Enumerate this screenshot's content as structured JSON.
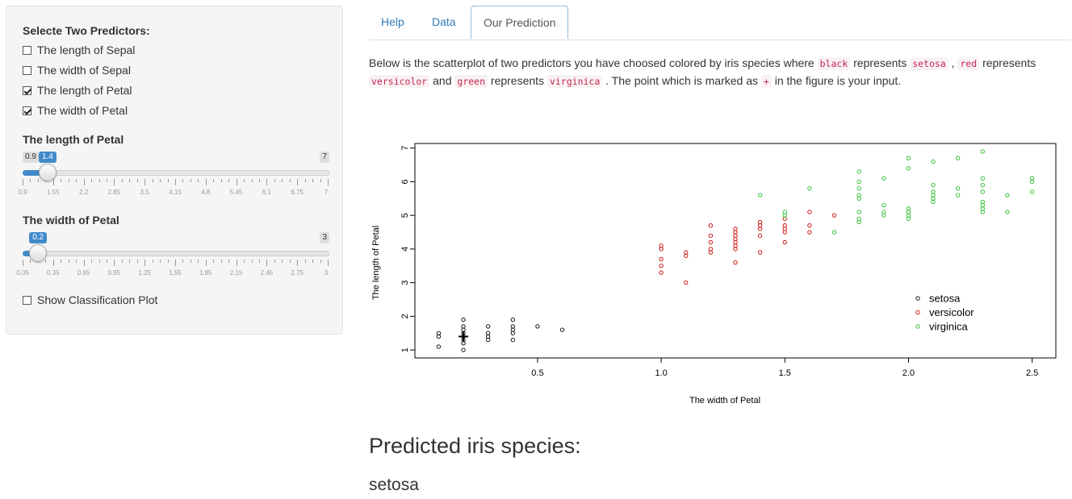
{
  "sidebar": {
    "predictors_label": "Selecte Two Predictors:",
    "predictors": [
      {
        "label": "The length of Sepal",
        "checked": false
      },
      {
        "label": "The width of Sepal",
        "checked": false
      },
      {
        "label": "The length of Petal",
        "checked": true
      },
      {
        "label": "The width of Petal",
        "checked": true
      }
    ],
    "slider1": {
      "label": "The length of Petal",
      "min": 0.9,
      "max": 7,
      "value": 1.4,
      "min_label": "0.9",
      "max_label": "7",
      "value_label": "1.4",
      "tick_labels": [
        "0.9",
        "1.55",
        "2.2",
        "2.85",
        "3.5",
        "4.15",
        "4.8",
        "5.45",
        "6.1",
        "6.75",
        "7"
      ]
    },
    "slider2": {
      "label": "The width of Petal",
      "min": 0.05,
      "max": 3,
      "value": 0.2,
      "min_label": "0.05",
      "max_label": "3",
      "value_label": "0.2",
      "tick_labels": [
        "0.05",
        "0.35",
        "0.65",
        "0.95",
        "1.25",
        "1.55",
        "1.85",
        "2.15",
        "2.45",
        "2.75",
        "3"
      ]
    },
    "classification_plot": {
      "label": "Show Classification Plot",
      "checked": false
    }
  },
  "tabs": [
    {
      "label": "Help",
      "active": false
    },
    {
      "label": "Data",
      "active": false
    },
    {
      "label": "Our Prediction",
      "active": true
    }
  ],
  "description": {
    "t1": "Below is the scatterplot of two predictors you have choosed colored by iris species where ",
    "c1": "black",
    "t2": " represents ",
    "c2": "setosa",
    "t3": " , ",
    "c3": "red",
    "t4": " represents ",
    "c4": "versicolor",
    "t5": " and ",
    "c5": "green",
    "t6": " represents ",
    "c6": "virginica",
    "t7": " . The point which is marked as ",
    "c7": "+",
    "t8": " in the figure is your input."
  },
  "chart_data": {
    "type": "scatter",
    "xlabel": "The width of Petal",
    "ylabel": "The length of Petal",
    "xlim": [
      0.1,
      2.5
    ],
    "ylim": [
      1,
      6.9
    ],
    "xticks": [
      "0.5",
      "1.0",
      "1.5",
      "2.0",
      "2.5"
    ],
    "yticks": [
      "1",
      "2",
      "3",
      "4",
      "5",
      "6",
      "7"
    ],
    "legend_position": "bottom-right",
    "input_point": {
      "x": 0.2,
      "y": 1.4,
      "marker": "+"
    },
    "series": [
      {
        "name": "setosa",
        "color": "#000000",
        "points": [
          [
            0.1,
            1.1
          ],
          [
            0.1,
            1.4
          ],
          [
            0.1,
            1.5
          ],
          [
            0.2,
            1.0
          ],
          [
            0.2,
            1.2
          ],
          [
            0.2,
            1.3
          ],
          [
            0.2,
            1.4
          ],
          [
            0.2,
            1.5
          ],
          [
            0.2,
            1.6
          ],
          [
            0.2,
            1.7
          ],
          [
            0.2,
            1.9
          ],
          [
            0.3,
            1.3
          ],
          [
            0.3,
            1.4
          ],
          [
            0.3,
            1.5
          ],
          [
            0.3,
            1.7
          ],
          [
            0.4,
            1.3
          ],
          [
            0.4,
            1.5
          ],
          [
            0.4,
            1.6
          ],
          [
            0.4,
            1.7
          ],
          [
            0.4,
            1.9
          ],
          [
            0.5,
            1.7
          ],
          [
            0.6,
            1.6
          ]
        ]
      },
      {
        "name": "versicolor",
        "color": "#cc0000",
        "points": [
          [
            1.0,
            3.3
          ],
          [
            1.0,
            3.5
          ],
          [
            1.0,
            3.7
          ],
          [
            1.0,
            4.0
          ],
          [
            1.0,
            4.1
          ],
          [
            1.1,
            3.0
          ],
          [
            1.1,
            3.8
          ],
          [
            1.1,
            3.9
          ],
          [
            1.2,
            3.9
          ],
          [
            1.2,
            4.0
          ],
          [
            1.2,
            4.2
          ],
          [
            1.2,
            4.4
          ],
          [
            1.2,
            4.7
          ],
          [
            1.3,
            3.6
          ],
          [
            1.3,
            4.0
          ],
          [
            1.3,
            4.1
          ],
          [
            1.3,
            4.2
          ],
          [
            1.3,
            4.3
          ],
          [
            1.3,
            4.4
          ],
          [
            1.3,
            4.5
          ],
          [
            1.3,
            4.6
          ],
          [
            1.4,
            3.9
          ],
          [
            1.4,
            4.4
          ],
          [
            1.4,
            4.6
          ],
          [
            1.4,
            4.7
          ],
          [
            1.4,
            4.8
          ],
          [
            1.5,
            4.2
          ],
          [
            1.5,
            4.5
          ],
          [
            1.5,
            4.6
          ],
          [
            1.5,
            4.7
          ],
          [
            1.5,
            4.9
          ],
          [
            1.6,
            4.5
          ],
          [
            1.6,
            4.7
          ],
          [
            1.6,
            5.1
          ],
          [
            1.7,
            5.0
          ]
        ]
      },
      {
        "name": "virginica",
        "color": "#22bb22",
        "points": [
          [
            1.4,
            5.6
          ],
          [
            1.5,
            5.0
          ],
          [
            1.5,
            5.1
          ],
          [
            1.6,
            5.8
          ],
          [
            1.7,
            4.5
          ],
          [
            1.8,
            4.8
          ],
          [
            1.8,
            4.9
          ],
          [
            1.8,
            5.1
          ],
          [
            1.8,
            5.5
          ],
          [
            1.8,
            5.6
          ],
          [
            1.8,
            5.8
          ],
          [
            1.8,
            6.0
          ],
          [
            1.8,
            6.3
          ],
          [
            1.9,
            5.0
          ],
          [
            1.9,
            5.1
          ],
          [
            1.9,
            5.3
          ],
          [
            1.9,
            6.1
          ],
          [
            2.0,
            4.9
          ],
          [
            2.0,
            5.0
          ],
          [
            2.0,
            5.1
          ],
          [
            2.0,
            5.2
          ],
          [
            2.0,
            6.4
          ],
          [
            2.0,
            6.7
          ],
          [
            2.1,
            5.4
          ],
          [
            2.1,
            5.5
          ],
          [
            2.1,
            5.6
          ],
          [
            2.1,
            5.7
          ],
          [
            2.1,
            5.9
          ],
          [
            2.1,
            6.6
          ],
          [
            2.2,
            5.6
          ],
          [
            2.2,
            5.8
          ],
          [
            2.2,
            6.7
          ],
          [
            2.3,
            5.1
          ],
          [
            2.3,
            5.2
          ],
          [
            2.3,
            5.3
          ],
          [
            2.3,
            5.4
          ],
          [
            2.3,
            5.7
          ],
          [
            2.3,
            5.9
          ],
          [
            2.3,
            6.1
          ],
          [
            2.3,
            6.9
          ],
          [
            2.4,
            5.1
          ],
          [
            2.4,
            5.6
          ],
          [
            2.5,
            5.7
          ],
          [
            2.5,
            6.0
          ],
          [
            2.5,
            6.1
          ]
        ]
      }
    ]
  },
  "prediction": {
    "heading": "Predicted iris species:",
    "value": "setosa"
  }
}
